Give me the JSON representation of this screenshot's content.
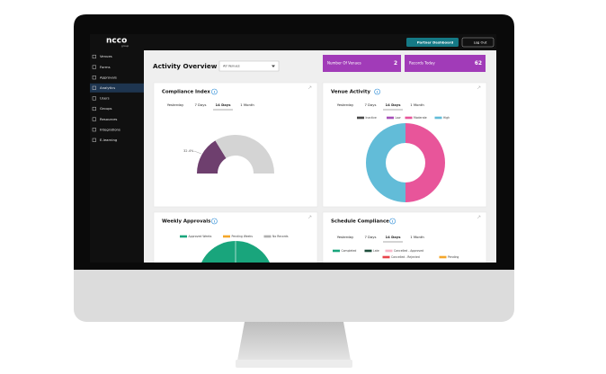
{
  "header": {
    "logo": "ncco",
    "logo_sub": "group",
    "buttons": [
      "Partner Dashboard",
      "Log Out"
    ]
  },
  "sidebar": {
    "items": [
      "Venues",
      "Forms",
      "Approvals",
      "Analytics",
      "Users",
      "Groups",
      "Resources",
      "Integrations",
      "E-learning"
    ],
    "active": 3
  },
  "page": {
    "title": "Activity Overview",
    "filter": "All Venues"
  },
  "stats": [
    {
      "label": "Number Of Venues",
      "value": 2
    },
    {
      "label": "Records Today",
      "value": 62
    }
  ],
  "compliance_index": {
    "title": "Compliance Index",
    "tabs": [
      "Yesterday",
      "7 Days",
      "14 Days",
      "1 Month"
    ],
    "active_tab": 2,
    "value": 32.4,
    "value_label": "32.4%",
    "range": [
      0,
      100
    ],
    "color": "#6e3f6e",
    "track_color": "#d4d4d4"
  },
  "venue_activity": {
    "title": "Venue Activity",
    "tabs": [
      "Yesterday",
      "7 Days",
      "14 Days",
      "1 Month"
    ],
    "active_tab": 2,
    "series": [
      {
        "name": "Inactive",
        "color": "#4a4a4a",
        "value": 0
      },
      {
        "name": "Low",
        "color": "#a64fb8",
        "value": 0
      },
      {
        "name": "Moderate",
        "color": "#e8559a",
        "value": 50
      },
      {
        "name": "High",
        "color": "#62bcd8",
        "value": 50
      }
    ]
  },
  "weekly_approvals": {
    "title": "Weekly Approvals",
    "series": [
      {
        "name": "Approved Weeks",
        "color": "#19a57c",
        "value": 1
      },
      {
        "name": "Pending Weeks",
        "color": "#f4a62a",
        "value": 0
      },
      {
        "name": "No Records",
        "color": "#b0b0b0",
        "value": 0
      }
    ]
  },
  "schedule_compliance": {
    "title": "Schedule Compliance",
    "tabs": [
      "Yesterday",
      "7 Days",
      "14 Days",
      "1 Month"
    ],
    "active_tab": 2,
    "legend": [
      {
        "name": "Completed",
        "color": "#19a57c"
      },
      {
        "name": "Late",
        "color": "#1d4d3a"
      },
      {
        "name": "Cancelled - Approved",
        "color": "#f7b6c8"
      },
      {
        "name": "Cancelled - Rejected",
        "color": "#e8434b"
      },
      {
        "name": "Pending",
        "color": "#f4a62a"
      }
    ]
  }
}
